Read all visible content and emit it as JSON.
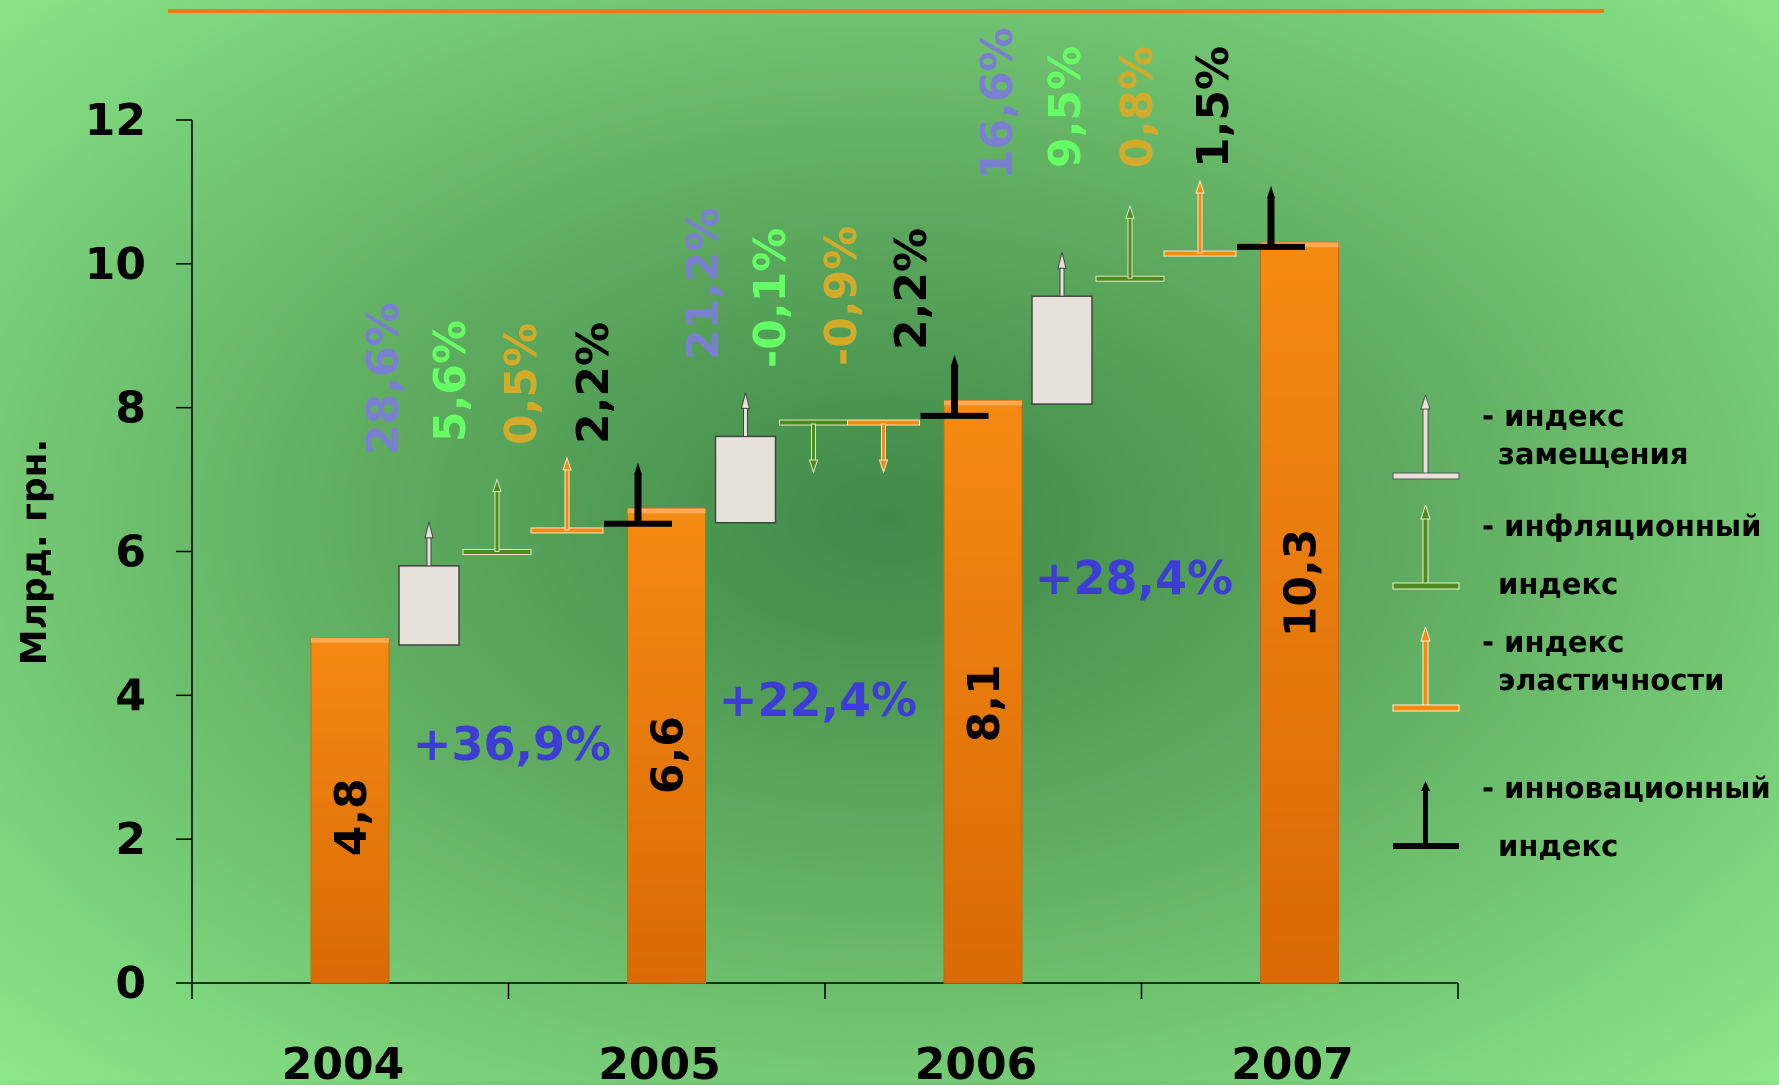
{
  "chart_data": {
    "type": "bar",
    "title": "",
    "xlabel": "",
    "ylabel": "Млрд. грн.",
    "ylim": [
      0,
      12
    ],
    "yticks": [
      "0",
      "2",
      "4",
      "6",
      "8",
      "10",
      "12"
    ],
    "categories": [
      "2004",
      "2005",
      "2006",
      "2007"
    ],
    "bar_color": "#f58a12",
    "bar_dark_color": "#d96a05",
    "values": [
      4.8,
      6.6,
      8.1,
      10.3
    ],
    "value_labels": [
      "4,8",
      "6,6",
      "8,1",
      "10,3"
    ],
    "growth_labels": [
      "+36,9%",
      "+22,4%",
      "+28,4%"
    ],
    "growth_color": "#3d3dd6",
    "index_steps": [
      [
        {
          "series": 0,
          "from": 4.7,
          "to": 5.8,
          "label": "28,6%"
        },
        {
          "series": 1,
          "from": 6.0,
          "to": 6.0,
          "label": "5,6%"
        },
        {
          "series": 2,
          "from": 6.3,
          "to": 6.3,
          "label": "0,5%"
        },
        {
          "series": 3,
          "from": 6.4,
          "to": 6.4,
          "label": "2,2%"
        }
      ],
      [
        {
          "series": 0,
          "from": 6.4,
          "to": 7.6,
          "label": "21,2%"
        },
        {
          "series": 1,
          "from": 7.8,
          "to": 7.8,
          "label": "-0,1%"
        },
        {
          "series": 2,
          "from": 7.8,
          "to": 7.8,
          "label": "-0,9%"
        },
        {
          "series": 3,
          "from": 7.9,
          "to": 7.9,
          "label": "2,2%"
        }
      ],
      [
        {
          "series": 0,
          "from": 8.05,
          "to": 9.55,
          "label": "16,6%"
        },
        {
          "series": 1,
          "from": 9.8,
          "to": 9.8,
          "label": "9,5%"
        },
        {
          "series": 2,
          "from": 10.15,
          "to": 10.15,
          "label": "0,8%"
        },
        {
          "series": 3,
          "from": 10.25,
          "to": 10.25,
          "label": "1,5%"
        }
      ]
    ],
    "series": [
      {
        "label_line1": "- индекс",
        "label_line2": "замещения",
        "color": "#e6e2da",
        "text_color": "#7b7fd2"
      },
      {
        "label_line1": "- инфляционный",
        "label_line2": "индекс",
        "color": "#4f8a1e",
        "text_color": "#66ff66"
      },
      {
        "label_line1": "-  индекс",
        "label_line2": "эластичности",
        "color": "#f58a12",
        "text_color": "#d4aa2a"
      },
      {
        "label_line1": "- инновационный",
        "label_line2": "индекс",
        "color": "#000000",
        "text_color": "#000000"
      }
    ],
    "legend_position": "right",
    "grid": false
  },
  "top_rule_color": "#f07a16"
}
